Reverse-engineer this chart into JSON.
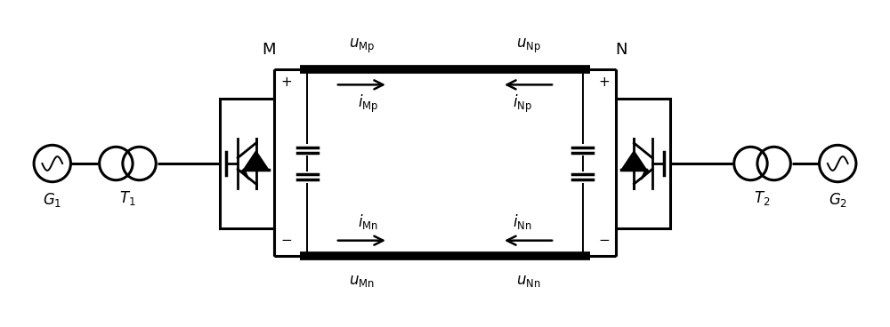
{
  "bg_color": "#ffffff",
  "line_color": "#000000",
  "thick_lw": 7,
  "med_lw": 2.2,
  "thin_lw": 1.4,
  "fig_width": 10.0,
  "fig_height": 3.68,
  "labels": {
    "uMp": "$u_{\\mathrm{Mp}}$",
    "uNp": "$u_{\\mathrm{Np}}$",
    "uMn": "$u_{\\mathrm{Mn}}$",
    "uNn": "$u_{\\mathrm{Nn}}$",
    "iMp": "$i_{\\mathrm{Mp}}$",
    "iNp": "$i_{\\mathrm{Np}}$",
    "iMn": "$i_{\\mathrm{Mn}}$",
    "iNn": "$i_{\\mathrm{Nn}}$",
    "M": "M",
    "N": "N",
    "G1": "$G_1$",
    "T1": "$T_1$",
    "T2": "$T_2$",
    "G2": "$G_2$",
    "plus": "+",
    "minus": "−"
  }
}
